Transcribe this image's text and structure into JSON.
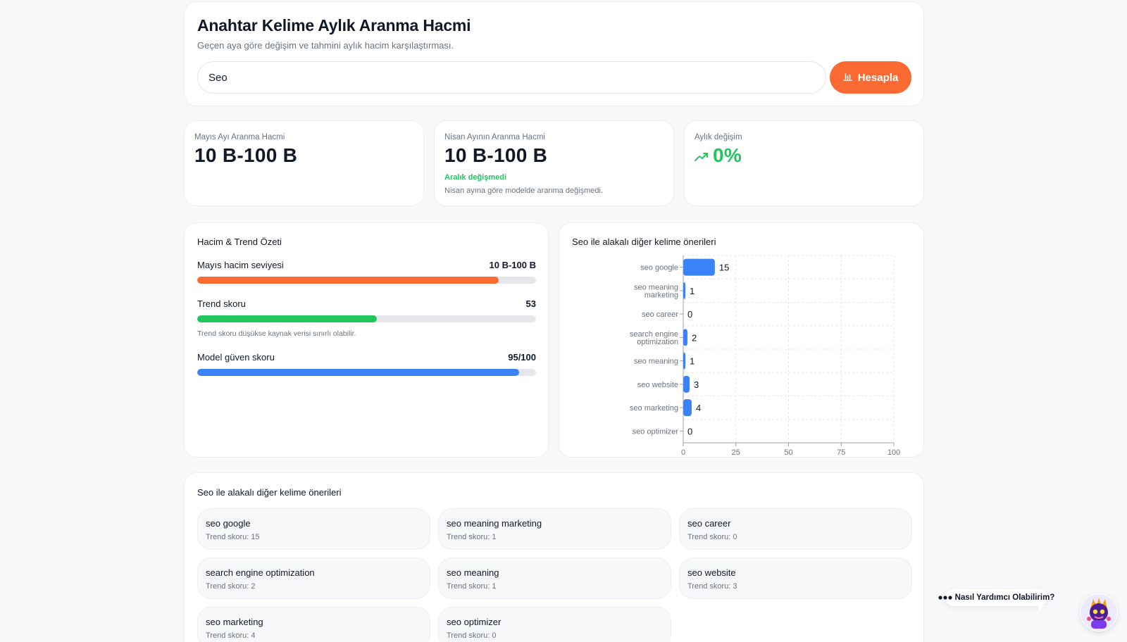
{
  "header": {
    "title": "Anahtar Kelime Aylık Aranma Hacmi",
    "subtitle": "Geçen aya göre değişim ve tahmini aylık hacim karşılaştırması.",
    "search_value": "Seo",
    "button_label": "Hesapla"
  },
  "stats": {
    "may": {
      "label": "Mayıs Ayı Aranma Hacmi",
      "value": "10 B-100 B"
    },
    "april": {
      "label": "Nisan Ayının Aranma Hacmi",
      "value": "10 B-100 B",
      "status": "Aralık değişmedi",
      "note": "Nisan ayına göre modelde aranma değişmedi."
    },
    "change": {
      "label": "Aylık değişim",
      "value": "0%"
    }
  },
  "summary": {
    "title": "Hacim & Trend Özeti",
    "rows": [
      {
        "label": "Mayıs hacim seviyesi",
        "value": "10 B-100 B",
        "level": 0.89,
        "color": "#fb6a32"
      },
      {
        "label": "Trend skoru",
        "value": "53",
        "level": 0.53,
        "color": "#22c55e"
      },
      {
        "label": "Model güven skoru",
        "value": "95/100",
        "level": 0.95,
        "color": "#3b82f6"
      }
    ],
    "hint": "Trend skoru düşükse kaynak verisi sınırlı olabilir."
  },
  "chart_data": {
    "type": "bar",
    "orientation": "horizontal",
    "title": "Seo ile alakalı diğer kelime önerileri",
    "categories": [
      "seo google",
      "seo meaning marketing",
      "seo career",
      "search engine optimization",
      "seo meaning",
      "seo website",
      "seo marketing",
      "seo optimizer"
    ],
    "category_lines": [
      [
        "seo google"
      ],
      [
        "seo meaning",
        "marketing"
      ],
      [
        "seo career"
      ],
      [
        "search engine",
        "optimization"
      ],
      [
        "seo meaning"
      ],
      [
        "seo website"
      ],
      [
        "seo marketing"
      ],
      [
        "seo optimizer"
      ]
    ],
    "values": [
      15,
      1,
      0,
      2,
      1,
      3,
      4,
      0
    ],
    "xlim": [
      0,
      100
    ],
    "xticks": [
      0,
      25,
      50,
      75,
      100
    ],
    "grid": true,
    "bar_color": "#3b82f6"
  },
  "suggestions": {
    "title": "Seo ile alakalı diğer kelime önerileri",
    "items": [
      {
        "keyword": "seo google",
        "score": "Trend skoru: 15"
      },
      {
        "keyword": "seo meaning marketing",
        "score": "Trend skoru: 1"
      },
      {
        "keyword": "seo career",
        "score": "Trend skoru: 0"
      },
      {
        "keyword": "search engine optimization",
        "score": "Trend skoru: 2"
      },
      {
        "keyword": "seo meaning",
        "score": "Trend skoru: 1"
      },
      {
        "keyword": "seo website",
        "score": "Trend skoru: 3"
      },
      {
        "keyword": "seo marketing",
        "score": "Trend skoru: 4"
      },
      {
        "keyword": "seo optimizer",
        "score": "Trend skoru: 0"
      }
    ]
  },
  "chat": {
    "label": "Nasıl Yardımcı Olabilirim?"
  }
}
